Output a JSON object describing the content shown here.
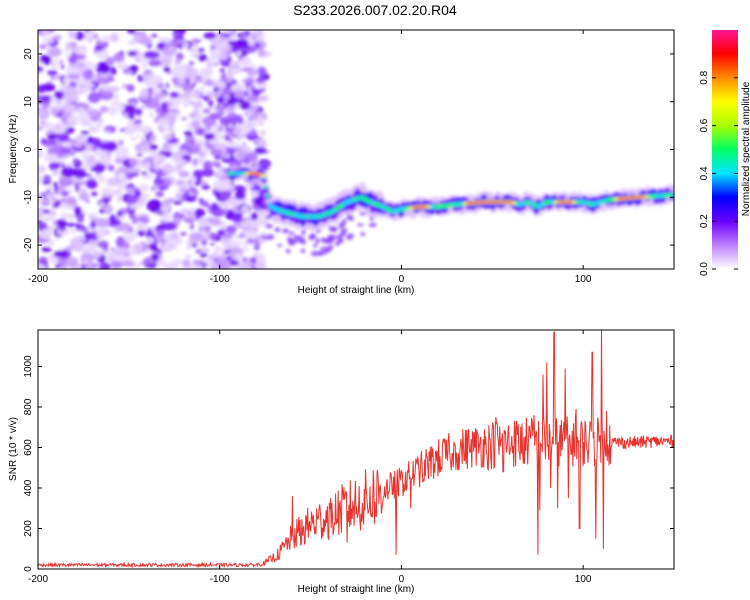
{
  "title": "S233.2026.007.02.20.R04",
  "chart_data": [
    {
      "type": "heatmap",
      "name": "spectrogram",
      "xlabel": "Height of straight line (km)",
      "ylabel": "Frequency (Hz)",
      "xlim": [
        -200,
        150
      ],
      "ylim": [
        -25,
        25
      ],
      "xticks": [
        -200,
        -100,
        0,
        100
      ],
      "yticks": [
        -20,
        -10,
        0,
        10,
        20
      ],
      "ridge": [
        [
          -95,
          -5
        ],
        [
          -88,
          -5
        ],
        [
          -80,
          -5
        ],
        [
          -76,
          -5.5
        ],
        [
          -72,
          -12
        ],
        [
          -65,
          -13
        ],
        [
          -55,
          -14
        ],
        [
          -45,
          -14
        ],
        [
          -38,
          -13
        ],
        [
          -30,
          -11
        ],
        [
          -22,
          -10
        ],
        [
          -17,
          -11
        ],
        [
          -10,
          -12
        ],
        [
          -5,
          -13
        ],
        [
          0,
          -12.5
        ],
        [
          10,
          -12
        ],
        [
          20,
          -12
        ],
        [
          30,
          -11.5
        ],
        [
          45,
          -11
        ],
        [
          60,
          -11
        ],
        [
          65,
          -11.5
        ],
        [
          70,
          -11
        ],
        [
          75,
          -12
        ],
        [
          80,
          -11
        ],
        [
          90,
          -11
        ],
        [
          100,
          -11
        ],
        [
          105,
          -11.5
        ],
        [
          115,
          -10.5
        ],
        [
          130,
          -10
        ],
        [
          150,
          -9.5
        ]
      ],
      "noise_region_x": [
        -200,
        -75
      ],
      "colorbar": {
        "label": "Normalized spectral amplitude",
        "range": [
          0,
          1
        ],
        "ticks": [
          "0.0",
          "0.2",
          "0.4",
          "0.6",
          "0.8"
        ],
        "colors": [
          "#ffffff",
          "#c080ff",
          "#6a00ff",
          "#0000ff",
          "#00e5ff",
          "#00ff66",
          "#aaff00",
          "#ffff00",
          "#ff8c00",
          "#ff0000",
          "#ff1493"
        ]
      }
    },
    {
      "type": "line",
      "name": "snr",
      "xlabel": "Height of straight line (km)",
      "ylabel": "SNR (10 * v/v)",
      "xlim": [
        -200,
        150
      ],
      "ylim": [
        0,
        1180
      ],
      "xticks": [
        -200,
        -100,
        0,
        100
      ],
      "yticks": [
        0,
        200,
        400,
        600,
        800,
        1000
      ],
      "color": "#e8332e",
      "envelope": [
        [
          -200,
          20
        ],
        [
          -80,
          20
        ],
        [
          -75,
          30
        ],
        [
          -68,
          70
        ],
        [
          -60,
          160
        ],
        [
          -50,
          220
        ],
        [
          -40,
          260
        ],
        [
          -30,
          300
        ],
        [
          -20,
          340
        ],
        [
          -10,
          390
        ],
        [
          0,
          430
        ],
        [
          10,
          490
        ],
        [
          20,
          545
        ],
        [
          30,
          585
        ],
        [
          40,
          605
        ],
        [
          50,
          615
        ],
        [
          60,
          620
        ],
        [
          70,
          630
        ],
        [
          80,
          630
        ],
        [
          90,
          630
        ],
        [
          100,
          630
        ],
        [
          110,
          625
        ],
        [
          120,
          625
        ],
        [
          130,
          625
        ],
        [
          140,
          630
        ],
        [
          150,
          630
        ]
      ],
      "spikes": [
        [
          -60,
          360
        ],
        [
          -55,
          120
        ],
        [
          -38,
          260
        ],
        [
          -30,
          130
        ],
        [
          -24,
          260
        ],
        [
          -14,
          260
        ],
        [
          -7,
          380
        ],
        [
          -3,
          70
        ],
        [
          5,
          300
        ],
        [
          12,
          440
        ],
        [
          18,
          520
        ],
        [
          28,
          570
        ],
        [
          52,
          750
        ],
        [
          56,
          480
        ],
        [
          62,
          730
        ],
        [
          67,
          520
        ],
        [
          73,
          760
        ],
        [
          75,
          70
        ],
        [
          76,
          290
        ],
        [
          78,
          960
        ],
        [
          80,
          1020
        ],
        [
          82,
          400
        ],
        [
          84,
          1170
        ],
        [
          86,
          300
        ],
        [
          90,
          990
        ],
        [
          92,
          350
        ],
        [
          96,
          790
        ],
        [
          98,
          200
        ],
        [
          105,
          1070
        ],
        [
          107,
          150
        ],
        [
          110,
          1200
        ],
        [
          111,
          100
        ],
        [
          113,
          780
        ]
      ]
    }
  ]
}
